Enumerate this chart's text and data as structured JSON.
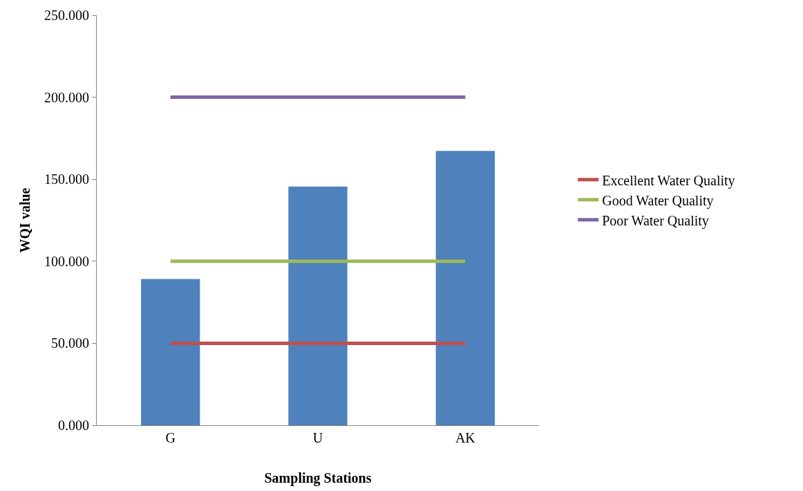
{
  "chart_data": {
    "type": "bar",
    "xlabel": "Sampling Stations",
    "ylabel": "WQI value",
    "categories": [
      "G",
      "U",
      "AK"
    ],
    "series": [
      {
        "color": "#4f81bd",
        "values": [
          89.2,
          145.5,
          167.3
        ]
      },
      {
        "type": "line",
        "name": "Excellent Water Quality",
        "color": "#c0504d",
        "values": [
          50,
          50,
          50
        ]
      },
      {
        "type": "line",
        "name": "Good Water Quality",
        "color": "#9bbb59",
        "values": [
          100,
          100,
          100
        ]
      },
      {
        "type": "line",
        "name": "Poor Water Quality",
        "color": "#8064a2",
        "values": [
          200,
          200,
          200
        ]
      }
    ],
    "ylim": [
      0,
      250
    ],
    "yticks": [
      {
        "value": 0,
        "label": "0.000"
      },
      {
        "value": 50,
        "label": "50.000"
      },
      {
        "value": 100,
        "label": "100.000"
      },
      {
        "value": 150,
        "label": "150.000"
      },
      {
        "value": 200,
        "label": "200.000"
      },
      {
        "value": 250,
        "label": "250.000"
      }
    ],
    "grid": false,
    "legend": "right",
    "marker": "none",
    "line_style": "solid"
  }
}
